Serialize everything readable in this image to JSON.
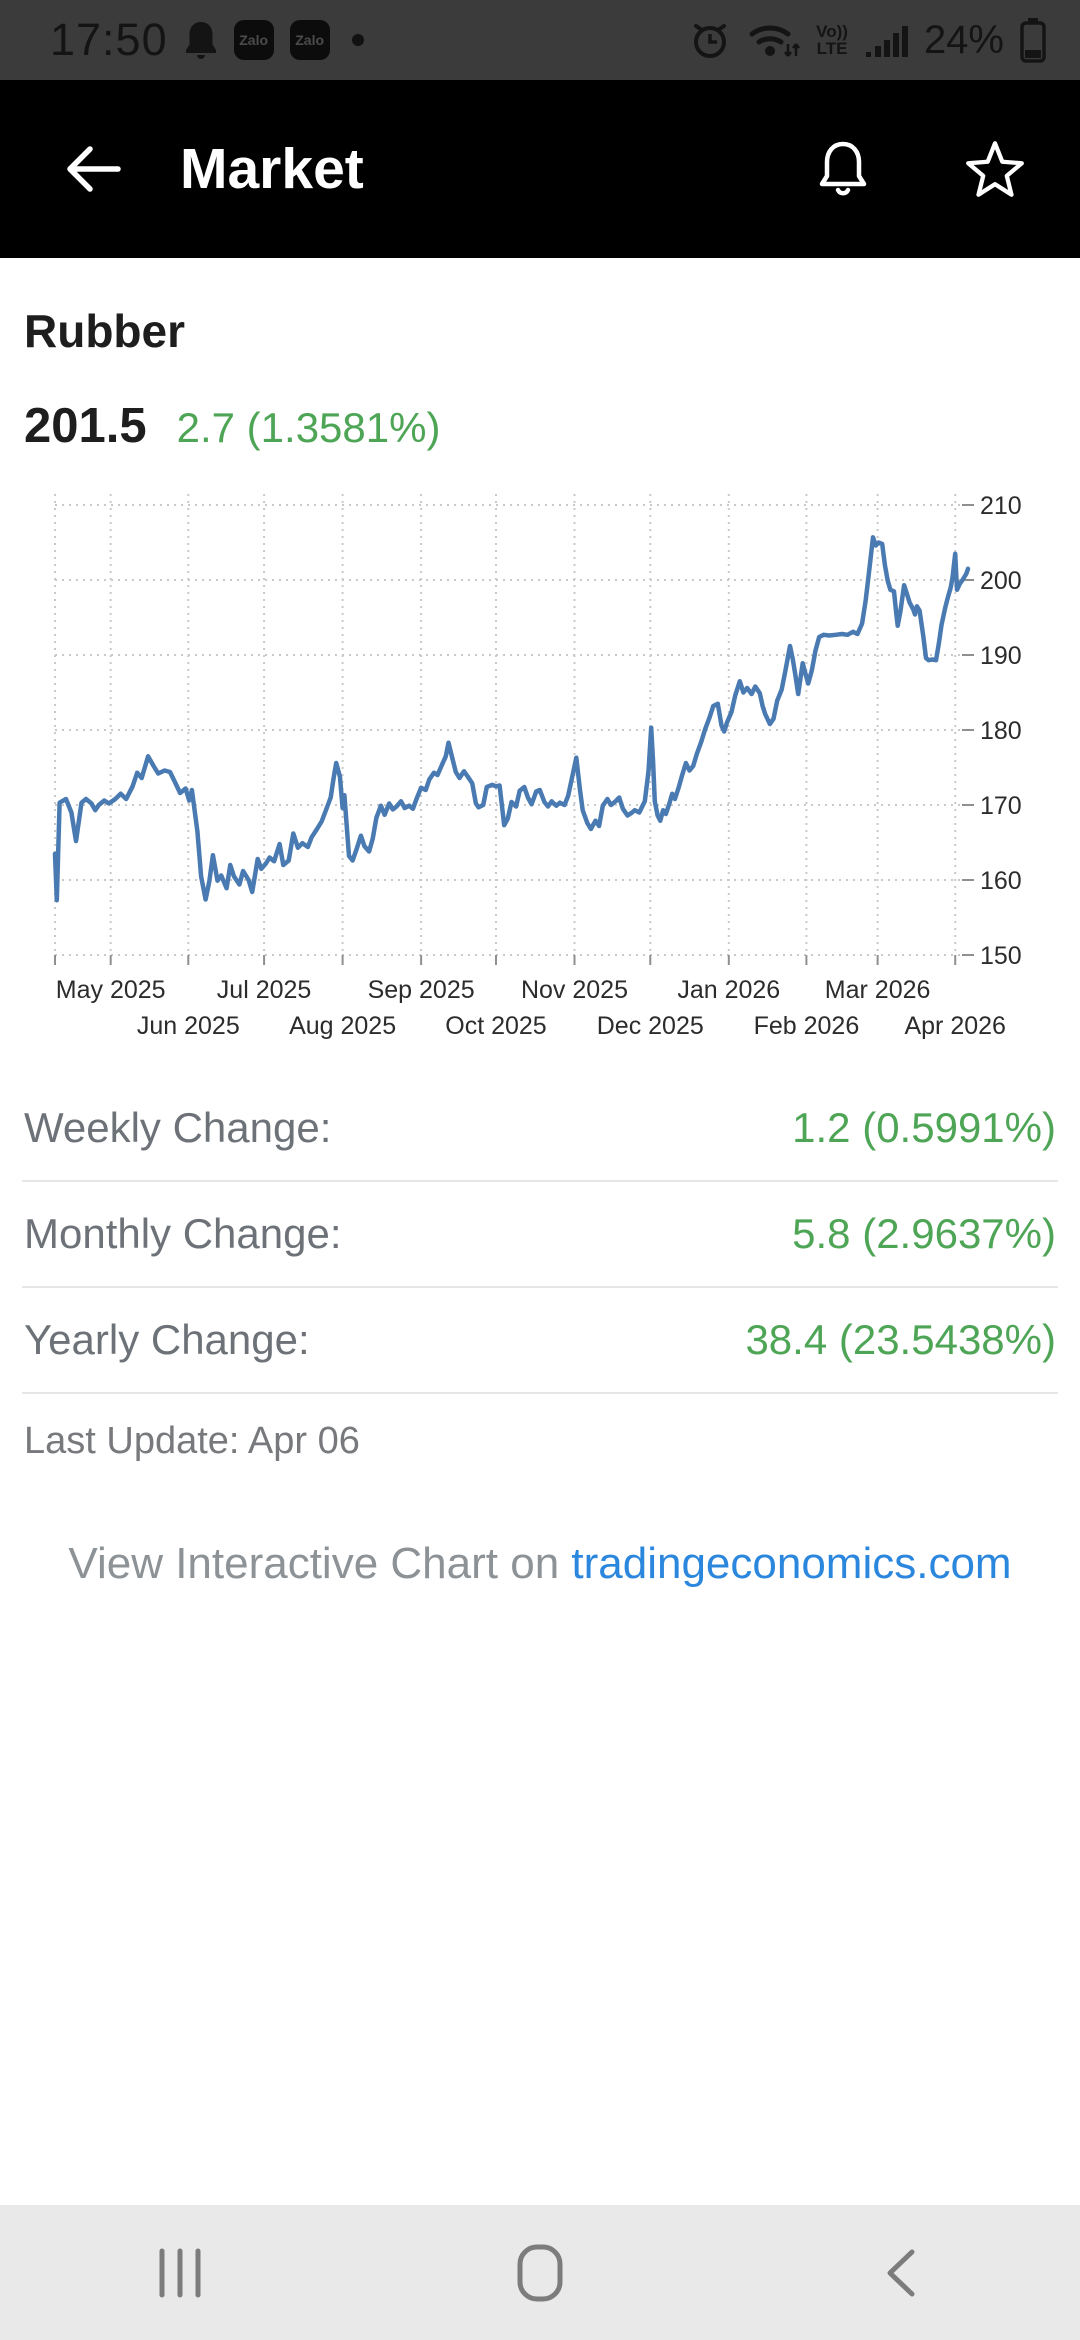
{
  "status": {
    "time": "17:50",
    "zalo_label": "Zalo",
    "volte_top": "Vo))",
    "volte_bottom": "LTE",
    "battery_percent": "24%"
  },
  "header": {
    "title": "Market"
  },
  "instrument": {
    "name": "Rubber",
    "price": "201.5",
    "change": "2.7 (1.3581%)"
  },
  "changes": [
    {
      "label": "Weekly Change:",
      "value": "1.2 (0.5991%)"
    },
    {
      "label": "Monthly Change:",
      "value": "5.8 (2.9637%)"
    },
    {
      "label": "Yearly Change:",
      "value": "38.4 (23.5438%)"
    }
  ],
  "last_update": "Last Update: Apr 06",
  "footer_link": {
    "prefix": "View Interactive Chart on ",
    "link_text": "tradingeconomics.com"
  },
  "colors": {
    "accent_green": "#4ea556",
    "link_blue": "#2b87dd",
    "line_blue": "#4a7ab2",
    "label_gray": "#6d7278",
    "status_bg": "#3b3b3b",
    "header_bg": "#000000",
    "nav_bg": "#e9e9e9"
  },
  "icons": {
    "status_left": [
      "notification-bell-icon",
      "zalo-app-icon",
      "zalo-app-icon",
      "notification-dot"
    ],
    "status_right": [
      "alarm-icon",
      "wifi-icon",
      "volte-indicator",
      "signal-icon",
      "battery-icon"
    ],
    "header": [
      "back-arrow-icon",
      "bell-icon",
      "star-icon"
    ],
    "nav": [
      "recents-icon",
      "home-icon",
      "back-icon"
    ]
  },
  "chart_data": {
    "type": "line",
    "series_name": "Rubber",
    "line_color": "#4a7ab2",
    "grid": true,
    "legend": "none",
    "y_axis_side": "right",
    "ylim": [
      150,
      210
    ],
    "y_ticks": [
      150,
      160,
      170,
      180,
      190,
      200,
      210
    ],
    "x_range": {
      "start": "Apr 2025",
      "end": "Apr 2026"
    },
    "x_ticks": [
      {
        "label": "May 2025",
        "f": 0.061,
        "row": 1
      },
      {
        "label": "Jun 2025",
        "f": 0.146,
        "row": 2
      },
      {
        "label": "Jul 2025",
        "f": 0.229,
        "row": 1
      },
      {
        "label": "Aug 2025",
        "f": 0.315,
        "row": 2
      },
      {
        "label": "Sep 2025",
        "f": 0.401,
        "row": 1
      },
      {
        "label": "Oct 2025",
        "f": 0.483,
        "row": 2
      },
      {
        "label": "Nov 2025",
        "f": 0.569,
        "row": 1
      },
      {
        "label": "Dec 2025",
        "f": 0.652,
        "row": 2
      },
      {
        "label": "Jan 2026",
        "f": 0.738,
        "row": 1
      },
      {
        "label": "Feb 2026",
        "f": 0.823,
        "row": 2
      },
      {
        "label": "Mar 2026",
        "f": 0.901,
        "row": 1
      },
      {
        "label": "Apr 2026",
        "f": 0.986,
        "row": 2
      }
    ],
    "points": [
      [
        0,
        163.5
      ],
      [
        0.002,
        157.3
      ],
      [
        0.005,
        170.3
      ],
      [
        0.012,
        170.8
      ],
      [
        0.018,
        169.0
      ],
      [
        0.023,
        165.2
      ],
      [
        0.029,
        170.3
      ],
      [
        0.034,
        170.8
      ],
      [
        0.04,
        170.2
      ],
      [
        0.044,
        169.3
      ],
      [
        0.048,
        170.0
      ],
      [
        0.054,
        170.6
      ],
      [
        0.059,
        170.2
      ],
      [
        0.066,
        170.8
      ],
      [
        0.072,
        171.5
      ],
      [
        0.078,
        170.8
      ],
      [
        0.085,
        172.5
      ],
      [
        0.09,
        174.3
      ],
      [
        0.095,
        173.6
      ],
      [
        0.102,
        176.5
      ],
      [
        0.108,
        175.2
      ],
      [
        0.113,
        174.2
      ],
      [
        0.12,
        174.6
      ],
      [
        0.126,
        174.4
      ],
      [
        0.132,
        172.9
      ],
      [
        0.137,
        171.6
      ],
      [
        0.143,
        172.2
      ],
      [
        0.147,
        170.6
      ],
      [
        0.15,
        172.0
      ],
      [
        0.156,
        166.5
      ],
      [
        0.16,
        160.5
      ],
      [
        0.165,
        157.4
      ],
      [
        0.169,
        159.8
      ],
      [
        0.173,
        163.3
      ],
      [
        0.178,
        159.9
      ],
      [
        0.182,
        160.6
      ],
      [
        0.188,
        158.9
      ],
      [
        0.192,
        162.0
      ],
      [
        0.196,
        160.5
      ],
      [
        0.202,
        159.4
      ],
      [
        0.206,
        161.2
      ],
      [
        0.212,
        160.0
      ],
      [
        0.216,
        158.4
      ],
      [
        0.222,
        162.8
      ],
      [
        0.226,
        161.5
      ],
      [
        0.231,
        162.2
      ],
      [
        0.235,
        163.0
      ],
      [
        0.24,
        162.5
      ],
      [
        0.246,
        164.8
      ],
      [
        0.25,
        162.0
      ],
      [
        0.256,
        162.6
      ],
      [
        0.261,
        166.2
      ],
      [
        0.266,
        164.3
      ],
      [
        0.271,
        164.9
      ],
      [
        0.277,
        164.4
      ],
      [
        0.281,
        165.7
      ],
      [
        0.287,
        166.8
      ],
      [
        0.292,
        167.8
      ],
      [
        0.297,
        169.4
      ],
      [
        0.302,
        171.0
      ],
      [
        0.305,
        173.5
      ],
      [
        0.308,
        175.6
      ],
      [
        0.312,
        173.8
      ],
      [
        0.315,
        169.6
      ],
      [
        0.317,
        171.3
      ],
      [
        0.322,
        163.2
      ],
      [
        0.326,
        162.6
      ],
      [
        0.33,
        164.0
      ],
      [
        0.335,
        165.9
      ],
      [
        0.339,
        164.5
      ],
      [
        0.344,
        163.8
      ],
      [
        0.348,
        165.5
      ],
      [
        0.352,
        168.3
      ],
      [
        0.357,
        169.9
      ],
      [
        0.361,
        168.7
      ],
      [
        0.366,
        170.2
      ],
      [
        0.37,
        169.4
      ],
      [
        0.374,
        169.8
      ],
      [
        0.379,
        170.5
      ],
      [
        0.383,
        169.6
      ],
      [
        0.388,
        169.9
      ],
      [
        0.392,
        169.5
      ],
      [
        0.396,
        170.8
      ],
      [
        0.401,
        172.3
      ],
      [
        0.406,
        172.0
      ],
      [
        0.41,
        173.4
      ],
      [
        0.415,
        174.3
      ],
      [
        0.419,
        174.0
      ],
      [
        0.424,
        175.4
      ],
      [
        0.428,
        176.5
      ],
      [
        0.431,
        178.3
      ],
      [
        0.435,
        176.3
      ],
      [
        0.439,
        174.4
      ],
      [
        0.443,
        173.6
      ],
      [
        0.448,
        174.5
      ],
      [
        0.452,
        173.8
      ],
      [
        0.457,
        172.9
      ],
      [
        0.461,
        170.2
      ],
      [
        0.464,
        169.7
      ],
      [
        0.469,
        170.0
      ],
      [
        0.473,
        172.4
      ],
      [
        0.479,
        172.7
      ],
      [
        0.483,
        172.5
      ],
      [
        0.487,
        172.6
      ],
      [
        0.492,
        167.3
      ],
      [
        0.496,
        168.2
      ],
      [
        0.5,
        170.4
      ],
      [
        0.505,
        169.8
      ],
      [
        0.509,
        171.9
      ],
      [
        0.514,
        172.4
      ],
      [
        0.518,
        171.0
      ],
      [
        0.522,
        170.1
      ],
      [
        0.527,
        171.8
      ],
      [
        0.531,
        172.0
      ],
      [
        0.536,
        170.4
      ],
      [
        0.54,
        169.8
      ],
      [
        0.544,
        170.5
      ],
      [
        0.549,
        169.9
      ],
      [
        0.553,
        170.3
      ],
      [
        0.558,
        170.0
      ],
      [
        0.562,
        171.2
      ],
      [
        0.566,
        173.5
      ],
      [
        0.571,
        176.3
      ],
      [
        0.575,
        172.0
      ],
      [
        0.578,
        169.3
      ],
      [
        0.583,
        167.6
      ],
      [
        0.587,
        166.8
      ],
      [
        0.592,
        167.9
      ],
      [
        0.596,
        167.2
      ],
      [
        0.6,
        169.9
      ],
      [
        0.605,
        170.8
      ],
      [
        0.609,
        170.0
      ],
      [
        0.614,
        170.5
      ],
      [
        0.618,
        171.0
      ],
      [
        0.622,
        169.5
      ],
      [
        0.627,
        168.6
      ],
      [
        0.631,
        168.9
      ],
      [
        0.635,
        169.3
      ],
      [
        0.64,
        169.0
      ],
      [
        0.646,
        170.5
      ],
      [
        0.65,
        174.5
      ],
      [
        0.653,
        180.3
      ],
      [
        0.655,
        176.0
      ],
      [
        0.657,
        170.5
      ],
      [
        0.66,
        168.6
      ],
      [
        0.663,
        167.9
      ],
      [
        0.666,
        169.3
      ],
      [
        0.669,
        168.8
      ],
      [
        0.673,
        170.2
      ],
      [
        0.676,
        171.5
      ],
      [
        0.679,
        170.8
      ],
      [
        0.683,
        172.3
      ],
      [
        0.687,
        174.0
      ],
      [
        0.691,
        175.6
      ],
      [
        0.695,
        174.6
      ],
      [
        0.699,
        175.2
      ],
      [
        0.703,
        176.8
      ],
      [
        0.708,
        178.5
      ],
      [
        0.712,
        180.1
      ],
      [
        0.717,
        181.7
      ],
      [
        0.721,
        183.2
      ],
      [
        0.726,
        183.5
      ],
      [
        0.73,
        180.6
      ],
      [
        0.733,
        179.8
      ],
      [
        0.736,
        181.0
      ],
      [
        0.741,
        182.4
      ],
      [
        0.745,
        184.6
      ],
      [
        0.75,
        186.5
      ],
      [
        0.754,
        185.0
      ],
      [
        0.758,
        185.6
      ],
      [
        0.763,
        184.8
      ],
      [
        0.767,
        185.8
      ],
      [
        0.772,
        184.9
      ],
      [
        0.775,
        183.2
      ],
      [
        0.778,
        182.1
      ],
      [
        0.783,
        180.8
      ],
      [
        0.787,
        181.5
      ],
      [
        0.791,
        183.9
      ],
      [
        0.796,
        185.4
      ],
      [
        0.8,
        187.9
      ],
      [
        0.805,
        191.2
      ],
      [
        0.808,
        189.5
      ],
      [
        0.811,
        187.3
      ],
      [
        0.814,
        184.8
      ],
      [
        0.819,
        188.9
      ],
      [
        0.822,
        187.5
      ],
      [
        0.825,
        186.2
      ],
      [
        0.829,
        188.0
      ],
      [
        0.833,
        190.6
      ],
      [
        0.837,
        192.4
      ],
      [
        0.842,
        192.7
      ],
      [
        0.848,
        192.6
      ],
      [
        0.855,
        192.7
      ],
      [
        0.862,
        192.8
      ],
      [
        0.868,
        192.7
      ],
      [
        0.874,
        193.1
      ],
      [
        0.879,
        192.8
      ],
      [
        0.884,
        194.2
      ],
      [
        0.888,
        197.3
      ],
      [
        0.892,
        201.5
      ],
      [
        0.896,
        205.7
      ],
      [
        0.899,
        204.6
      ],
      [
        0.902,
        205.0
      ],
      [
        0.906,
        204.8
      ],
      [
        0.909,
        202.0
      ],
      [
        0.912,
        199.9
      ],
      [
        0.915,
        198.7
      ],
      [
        0.919,
        198.5
      ],
      [
        0.921,
        196.0
      ],
      [
        0.923,
        193.9
      ],
      [
        0.926,
        195.8
      ],
      [
        0.93,
        199.3
      ],
      [
        0.933,
        198.2
      ],
      [
        0.936,
        197.0
      ],
      [
        0.94,
        196.1
      ],
      [
        0.942,
        195.4
      ],
      [
        0.944,
        196.5
      ],
      [
        0.947,
        195.9
      ],
      [
        0.951,
        192.5
      ],
      [
        0.954,
        189.6
      ],
      [
        0.957,
        189.3
      ],
      [
        0.961,
        189.4
      ],
      [
        0.965,
        189.3
      ],
      [
        0.968,
        191.5
      ],
      [
        0.971,
        194.0
      ],
      [
        0.975,
        196.3
      ],
      [
        0.978,
        197.7
      ],
      [
        0.981,
        199.0
      ],
      [
        0.983,
        200.3
      ],
      [
        0.986,
        203.5
      ],
      [
        0.988,
        198.7
      ],
      [
        0.991,
        199.5
      ],
      [
        0.994,
        200.0
      ],
      [
        0.998,
        200.8
      ],
      [
        1,
        201.5
      ]
    ]
  }
}
